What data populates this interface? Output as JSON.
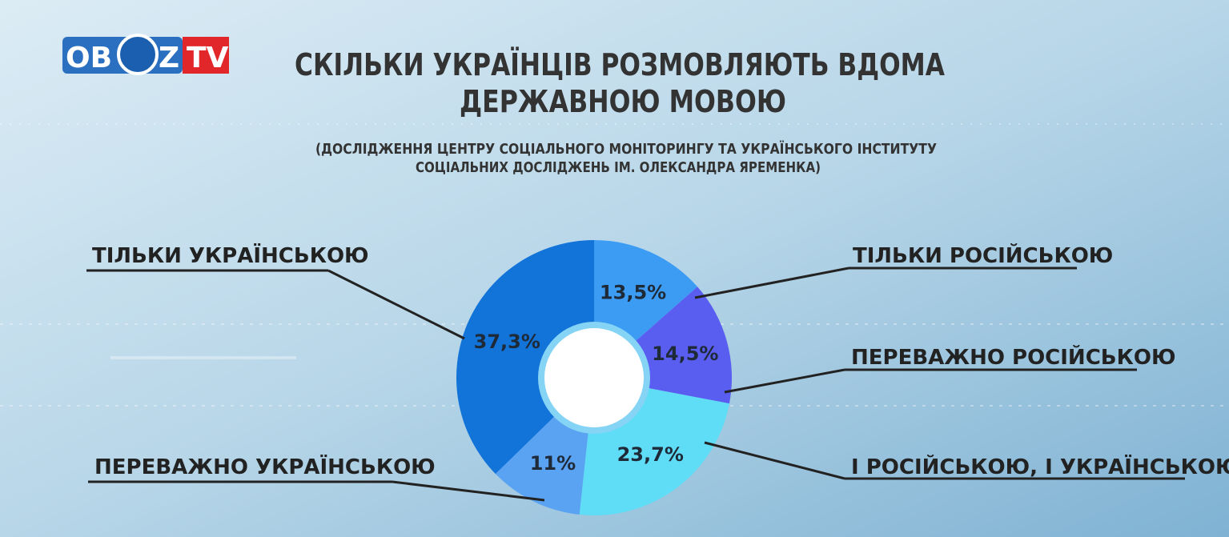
{
  "logo": {
    "left": "OB",
    "right": "Z",
    "tv": "TV"
  },
  "chart_data": {
    "type": "donut",
    "title": [
      "СКІЛЬКИ УКРАЇНЦІВ РОЗМОВЛЯЮТЬ ВДОМА",
      "ДЕРЖАВНОЮ МОВОЮ"
    ],
    "subtitle": [
      "(ДОСЛІДЖЕННЯ ЦЕНТРУ СОЦІАЛЬНОГО МОНІТОРИНГУ ТА УКРАЇНСЬКОГО ІНСТИТУТУ",
      "СОЦІАЛЬНИХ ДОСЛІДЖЕНЬ ІМ. ОЛЕКСАНДРА ЯРЕМЕНКА)"
    ],
    "categories": [
      "ТІЛЬКИ РОСІЙСЬКОЮ",
      "ПЕРЕВАЖНО РОСІЙСЬКОЮ",
      "І РОСІЙСЬКОЮ, І УКРАЇНСЬКОЮ",
      "ПЕРЕВАЖНО УКРАЇНСЬКОЮ",
      "ТІЛЬКИ УКРАЇНСЬКОЮ"
    ],
    "values": [
      13.5,
      14.5,
      23.7,
      11,
      37.3
    ],
    "value_labels": [
      "13,5%",
      "14,5%",
      "23,7%",
      "11%",
      "37,3%"
    ],
    "colors": [
      "#3c9cf3",
      "#5a5ef0",
      "#5fdcf6",
      "#5aa2f2",
      "#1273d9"
    ]
  }
}
